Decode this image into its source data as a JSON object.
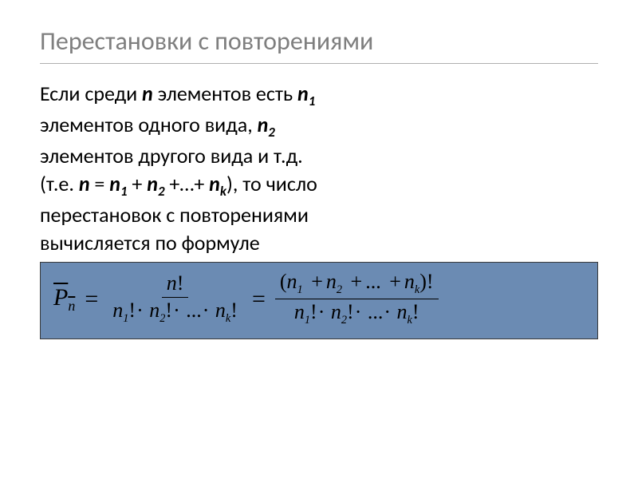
{
  "slide": {
    "title": "Перестановки с повторениями",
    "title_color": "#7f7f7f",
    "title_fontsize": 32,
    "body_fontsize": 26,
    "body_color": "#000000",
    "divider_color": "#b0b0b0",
    "background_color": "#ffffff",
    "paragraph_lines": {
      "l1a": "Если среди ",
      "l1b": " элементов есть ",
      "l2a": "элементов одного вида, ",
      "l3a": "элементов другого вида и т.д.",
      "l4a": "(т.е. ",
      "l4eq": " = ",
      "l4plus1": " + ",
      "l4plus2": " +…+ ",
      "l4b": "), то число",
      "l5": "перестановок с повторениями",
      "l6": "вычисляется по формуле"
    },
    "vars": {
      "n": "n",
      "n1": "n",
      "n1_sub": "1",
      "n2": "n",
      "n2_sub": "2",
      "nk": "n",
      "nk_sub": "k"
    },
    "formula_box": {
      "background_color": "#6b8bb3",
      "border_color": "#3a3a3a",
      "font_family": "Times New Roman",
      "fontsize": 30
    },
    "formula": {
      "P": "P",
      "P_sub": "n",
      "eq": "=",
      "numerator1": "n",
      "excl": "!",
      "den_n1": "n",
      "den_s1": "1",
      "den_n2": "n",
      "den_s2": "2",
      "den_dots": "...",
      "den_nk": "n",
      "den_sk": "k",
      "num2_open": "(",
      "num2_n1": "n",
      "num2_s1": "1",
      "num2_plus": "+",
      "num2_n2": "n",
      "num2_s2": "2",
      "num2_dots": "...",
      "num2_nk": "n",
      "num2_sk": "k",
      "num2_close": ")",
      "cdot": "·"
    }
  }
}
